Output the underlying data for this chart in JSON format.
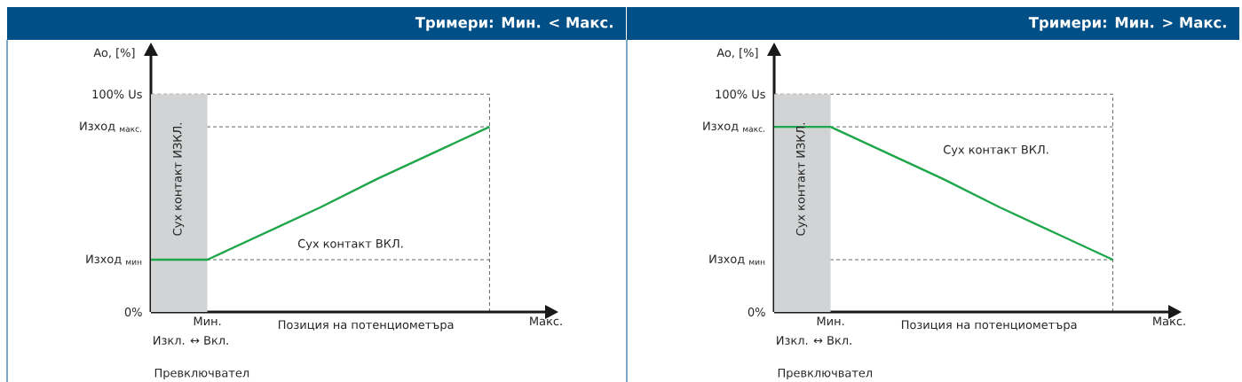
{
  "chart_data": [
    {
      "type": "line",
      "title": "Тримери: Мин. < Макс.",
      "xlabel": "Позиция на потенциометъра",
      "ylabel": "Ao, [%]",
      "categories": [
        null,
        "Мин.",
        null,
        null,
        null,
        null,
        null,
        "Макс."
      ],
      "series": [
        {
          "type": "area",
          "color": "#d1d3d4",
          "values": [
            100,
            100,
            null,
            null,
            null,
            null,
            null,
            null
          ]
        },
        {
          "color": "#1fa64a",
          "values": [
            24,
            24,
            36,
            48,
            61,
            73,
            85,
            null
          ]
        }
      ],
      "ylim": [
        0,
        118
      ],
      "yticks": [
        {
          "value": 0,
          "label": "0%"
        },
        {
          "value": 24,
          "label": "Изход $_{мин}$"
        },
        {
          "value": 85,
          "label": "Изход $_{макс.}$"
        },
        {
          "value": 100,
          "label": "100% Us"
        }
      ],
      "ref_lines": [
        {
          "axis": "y",
          "value": 100,
          "color": "#555555",
          "line_style": "dashed"
        },
        {
          "axis": "y",
          "value": 85,
          "color": "#555555",
          "line_style": "dashed"
        },
        {
          "axis": "y",
          "value": 24,
          "color": "#555555",
          "line_style": "dashed"
        }
      ],
      "annotations": [
        "Сух контакт ВКЛ.",
        "Изкл. ↔ Вкл.",
        "Превключвател",
        "Сух контакт ИЗКЛ."
      ],
      "line_style": "solid"
    },
    {
      "type": "line",
      "title": "Тримери: Мин. > Макс.",
      "xlabel": "Позиция на потенциометъра",
      "ylabel": "Ao, [%]",
      "categories": [
        null,
        "Мин.",
        null,
        null,
        null,
        null,
        null,
        "Макс."
      ],
      "series": [
        {
          "type": "area",
          "color": "#d1d3d4",
          "values": [
            100,
            100,
            null,
            null,
            null,
            null,
            null,
            null
          ]
        },
        {
          "color": "#1fa64a",
          "values": [
            85,
            85,
            73,
            61,
            48,
            36,
            24,
            null
          ]
        }
      ],
      "ylim": [
        0,
        118
      ],
      "yticks": [
        {
          "value": 0,
          "label": "0%"
        },
        {
          "value": 24,
          "label": "Изход $_{мин}$"
        },
        {
          "value": 85,
          "label": "Изход $_{макс.}$"
        },
        {
          "value": 100,
          "label": "100% Us"
        }
      ],
      "ref_lines": [
        {
          "axis": "y",
          "value": 100,
          "color": "#555555",
          "line_style": "dashed"
        },
        {
          "axis": "y",
          "value": 85,
          "color": "#555555",
          "line_style": "dashed"
        },
        {
          "axis": "y",
          "value": 24,
          "color": "#555555",
          "line_style": "dashed"
        }
      ],
      "annotations": [
        "Сух контакт ВКЛ.",
        "Изкл. ↔ Вкл.",
        "Превключвател",
        "Сух контакт ИЗКЛ."
      ],
      "line_style": "solid"
    }
  ]
}
